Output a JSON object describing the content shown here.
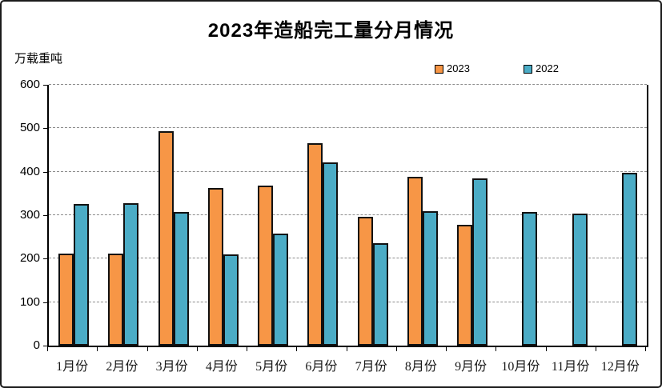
{
  "title": "2023年造船完工量分月情况",
  "y_axis_title": "万载重吨",
  "legend": {
    "items": [
      {
        "label": "2023",
        "color": "#F79646"
      },
      {
        "label": "2022",
        "color": "#4BACC6"
      }
    ]
  },
  "chart_data": {
    "type": "bar",
    "title": "2023年造船完工量分月情况",
    "xlabel": "",
    "ylabel": "万载重吨",
    "ylim": [
      0,
      600
    ],
    "ytick_step": 100,
    "ytick_labels": [
      "0",
      "100",
      "200",
      "300",
      "400",
      "500",
      "600"
    ],
    "grid": "horizontal-dashed",
    "legend_position": "top-right",
    "categories": [
      "1月份",
      "2月份",
      "3月份",
      "4月份",
      "5月份",
      "6月份",
      "7月份",
      "8月份",
      "9月份",
      "10月份",
      "11月份",
      "12月份"
    ],
    "series": [
      {
        "name": "2023",
        "color": "#F79646",
        "values": [
          211,
          212,
          494,
          362,
          368,
          466,
          296,
          389,
          277,
          null,
          null,
          null
        ]
      },
      {
        "name": "2022",
        "color": "#4BACC6",
        "values": [
          326,
          327,
          308,
          210,
          257,
          422,
          236,
          310,
          385,
          308,
          303,
          397
        ]
      }
    ]
  },
  "colors": {
    "bar_border": "#111111",
    "gridline": "#8c8c8c",
    "axis": "#000000",
    "frame_border": "#1a1a1a",
    "background": "#ffffff"
  }
}
